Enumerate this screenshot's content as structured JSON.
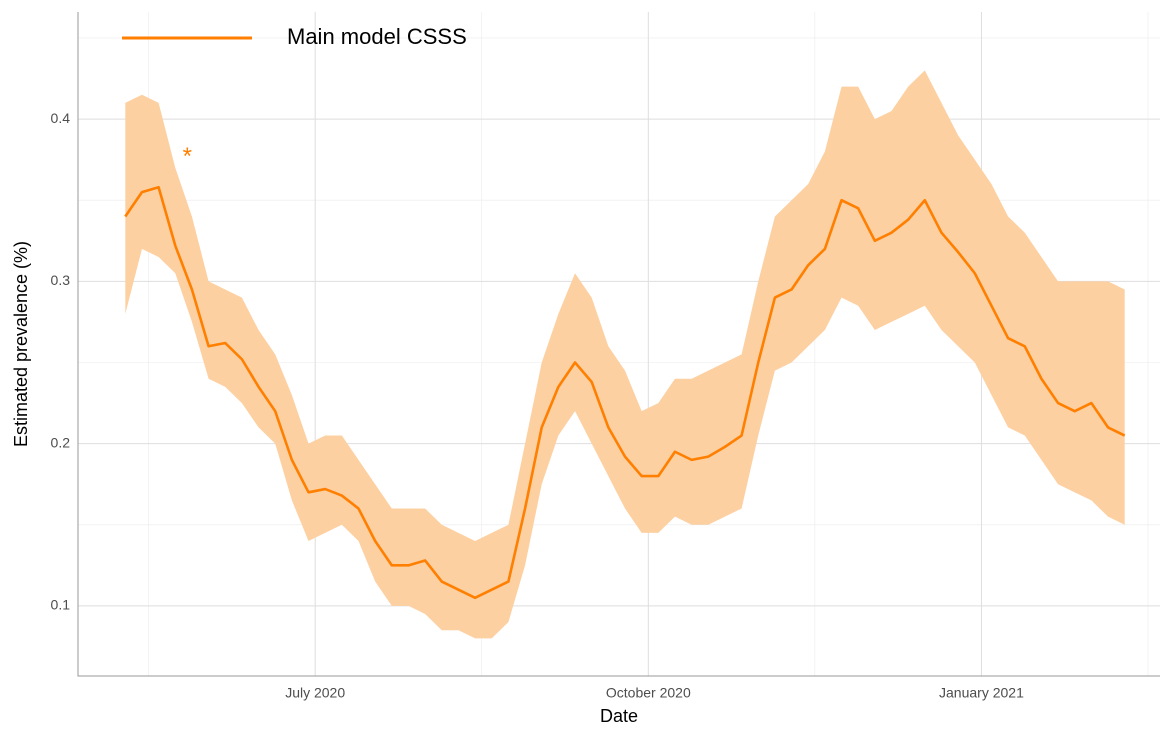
{
  "chart_data": {
    "type": "line",
    "xlabel": "Date",
    "ylabel": "Estimated prevalence (%)",
    "xlim": [
      2020.322,
      2021.134
    ],
    "ylim": [
      0.0568,
      0.466
    ],
    "xticks": [
      {
        "value": 2020.5,
        "label": "July 2020"
      },
      {
        "value": 2020.75,
        "label": "October 2020"
      },
      {
        "value": 2021.0,
        "label": "January 2021"
      }
    ],
    "x_minor_ticks": [
      2020.375,
      2020.625,
      2020.875,
      2021.125
    ],
    "yticks": [
      0.1,
      0.2,
      0.3,
      0.4
    ],
    "y_minor_ticks": [
      0.15,
      0.25,
      0.35,
      0.45
    ],
    "grid": true,
    "legend": "top-left",
    "annotations": [
      {
        "text": "*",
        "x": 2020.404,
        "y": 0.38
      }
    ],
    "x": [
      2020.3575,
      2020.37,
      2020.3825,
      2020.395,
      2020.4075,
      2020.42,
      2020.4325,
      2020.445,
      2020.4575,
      2020.47,
      2020.4825,
      2020.495,
      2020.5075,
      2020.52,
      2020.5325,
      2020.545,
      2020.5575,
      2020.57,
      2020.5825,
      2020.595,
      2020.6075,
      2020.62,
      2020.6325,
      2020.645,
      2020.6575,
      2020.67,
      2020.6825,
      2020.695,
      2020.7075,
      2020.72,
      2020.7325,
      2020.745,
      2020.7575,
      2020.77,
      2020.7825,
      2020.795,
      2020.8075,
      2020.82,
      2020.8325,
      2020.845,
      2020.8575,
      2020.87,
      2020.8825,
      2020.895,
      2020.9075,
      2020.92,
      2020.9325,
      2020.945,
      2020.9575,
      2020.97,
      2020.9825,
      2020.995,
      2021.0075,
      2021.02,
      2021.0325,
      2021.045,
      2021.0575,
      2021.07,
      2021.0825,
      2021.095,
      2021.1075
    ],
    "series": [
      {
        "name": "Main model CSSS",
        "color": "#ff7f00",
        "band_color": "#fdd0a2",
        "values": [
          0.34,
          0.355,
          0.358,
          0.322,
          0.295,
          0.26,
          0.262,
          0.252,
          0.235,
          0.22,
          0.19,
          0.17,
          0.172,
          0.168,
          0.16,
          0.14,
          0.125,
          0.125,
          0.128,
          0.115,
          0.11,
          0.105,
          0.11,
          0.115,
          0.16,
          0.21,
          0.235,
          0.25,
          0.238,
          0.21,
          0.192,
          0.18,
          0.18,
          0.195,
          0.19,
          0.192,
          0.198,
          0.205,
          0.25,
          0.29,
          0.295,
          0.31,
          0.32,
          0.35,
          0.345,
          0.325,
          0.33,
          0.338,
          0.35,
          0.33,
          0.318,
          0.305,
          0.285,
          0.265,
          0.26,
          0.24,
          0.225,
          0.22,
          0.225,
          0.21,
          0.205
        ],
        "lower": [
          0.28,
          0.32,
          0.315,
          0.305,
          0.275,
          0.24,
          0.235,
          0.225,
          0.21,
          0.2,
          0.165,
          0.14,
          0.145,
          0.15,
          0.14,
          0.115,
          0.1,
          0.1,
          0.095,
          0.085,
          0.085,
          0.08,
          0.08,
          0.09,
          0.125,
          0.175,
          0.205,
          0.22,
          0.2,
          0.18,
          0.16,
          0.145,
          0.145,
          0.155,
          0.15,
          0.15,
          0.155,
          0.16,
          0.205,
          0.245,
          0.25,
          0.26,
          0.27,
          0.29,
          0.285,
          0.27,
          0.275,
          0.28,
          0.285,
          0.27,
          0.26,
          0.25,
          0.23,
          0.21,
          0.205,
          0.19,
          0.175,
          0.17,
          0.165,
          0.155,
          0.15
        ],
        "upper": [
          0.41,
          0.415,
          0.41,
          0.37,
          0.34,
          0.3,
          0.295,
          0.29,
          0.27,
          0.255,
          0.23,
          0.2,
          0.205,
          0.205,
          0.19,
          0.175,
          0.16,
          0.16,
          0.16,
          0.15,
          0.145,
          0.14,
          0.145,
          0.15,
          0.2,
          0.25,
          0.28,
          0.305,
          0.29,
          0.26,
          0.245,
          0.22,
          0.225,
          0.24,
          0.24,
          0.245,
          0.25,
          0.255,
          0.3,
          0.34,
          0.35,
          0.36,
          0.38,
          0.42,
          0.42,
          0.4,
          0.405,
          0.42,
          0.43,
          0.41,
          0.39,
          0.375,
          0.36,
          0.34,
          0.33,
          0.315,
          0.3,
          0.3,
          0.3,
          0.3,
          0.295
        ]
      }
    ]
  }
}
